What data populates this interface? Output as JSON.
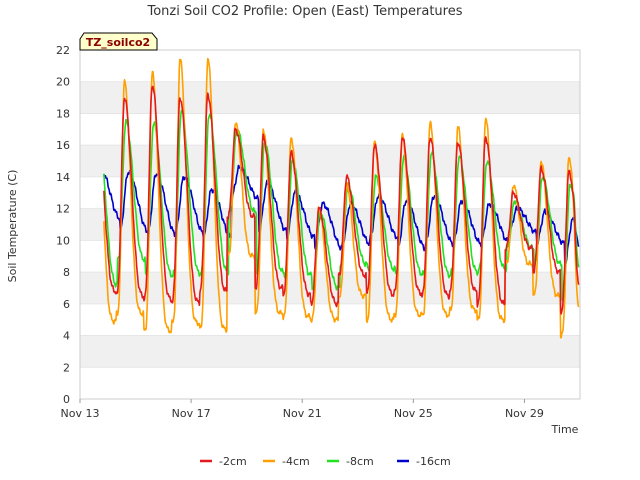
{
  "chart_data": {
    "type": "line",
    "title": "Tonzi Soil CO2 Profile: Open (East) Temperatures",
    "xlabel": "Time",
    "ylabel": "Soil Temperature (C)",
    "tag": "TZ_soilco2",
    "ylim": [
      0,
      22
    ],
    "yticks": [
      0,
      2,
      4,
      6,
      8,
      10,
      12,
      14,
      16,
      18,
      20,
      22
    ],
    "xlim": [
      0,
      18
    ],
    "xticks": [
      {
        "x": 0,
        "label": "Nov 13"
      },
      {
        "x": 4,
        "label": "Nov 17"
      },
      {
        "x": 8,
        "label": "Nov 21"
      },
      {
        "x": 12,
        "label": "Nov 25"
      },
      {
        "x": 16,
        "label": "Nov 29"
      }
    ],
    "grid": "horizontal bands",
    "legend_position": "bottom",
    "days": [
      {
        "d": 0,
        "min2": 6.8,
        "max2": 18.0,
        "min4": 4.9,
        "max4": 19.2,
        "min8": 7.2,
        "max8": 17.0,
        "min16": 11.4,
        "max16": 14.5
      },
      {
        "d": 1,
        "min2": 6.5,
        "max2": 19.0,
        "min4": 5.4,
        "max4": 20.0,
        "min8": 8.8,
        "max8": 17.5,
        "min16": 10.6,
        "max16": 14.3
      },
      {
        "d": 2,
        "min2": 6.3,
        "max2": 19.8,
        "min4": 4.3,
        "max4": 20.6,
        "min8": 7.8,
        "max8": 17.4,
        "min16": 10.4,
        "max16": 14.2
      },
      {
        "d": 3,
        "min2": 6.1,
        "max2": 19.0,
        "min4": 4.8,
        "max4": 21.5,
        "min8": 7.9,
        "max8": 18.2,
        "min16": 10.5,
        "max16": 14.0
      },
      {
        "d": 4,
        "min2": 6.8,
        "max2": 19.2,
        "min4": 4.4,
        "max4": 21.5,
        "min8": 8.0,
        "max8": 18.0,
        "min16": 10.2,
        "max16": 13.2
      },
      {
        "d": 5,
        "min2": 11.5,
        "max2": 17.0,
        "min4": 9.0,
        "max4": 17.5,
        "min8": 11.8,
        "max8": 17.0,
        "min16": 12.6,
        "max16": 14.6
      },
      {
        "d": 6,
        "min2": 7.0,
        "max2": 16.5,
        "min4": 5.4,
        "max4": 17.0,
        "min8": 8.0,
        "max8": 16.2,
        "min16": 10.6,
        "max16": 13.6
      },
      {
        "d": 7,
        "min2": 6.6,
        "max2": 15.5,
        "min4": 5.2,
        "max4": 16.5,
        "min8": 7.8,
        "max8": 15.0,
        "min16": 10.2,
        "max16": 13.0
      },
      {
        "d": 8,
        "min2": 6.0,
        "max2": 12.0,
        "min4": 5.0,
        "max4": 12.0,
        "min8": 7.0,
        "max8": 11.8,
        "min16": 9.5,
        "max16": 12.3
      },
      {
        "d": 9,
        "min2": 7.8,
        "max2": 14.0,
        "min4": 6.5,
        "max4": 13.5,
        "min8": 8.5,
        "max8": 13.5,
        "min16": 9.8,
        "max16": 12.3
      },
      {
        "d": 10,
        "min2": 6.6,
        "max2": 16.0,
        "min4": 5.0,
        "max4": 16.2,
        "min8": 8.2,
        "max8": 14.0,
        "min16": 10.2,
        "max16": 12.8
      },
      {
        "d": 11,
        "min2": 6.7,
        "max2": 16.5,
        "min4": 5.3,
        "max4": 16.6,
        "min8": 7.9,
        "max8": 15.2,
        "min16": 9.5,
        "max16": 12.5
      },
      {
        "d": 12,
        "min2": 6.5,
        "max2": 16.5,
        "min4": 5.3,
        "max4": 17.4,
        "min8": 7.8,
        "max8": 15.5,
        "min16": 9.8,
        "max16": 12.8
      },
      {
        "d": 13,
        "min2": 6.8,
        "max2": 16.2,
        "min4": 5.6,
        "max4": 17.2,
        "min8": 8.0,
        "max8": 15.3,
        "min16": 9.8,
        "max16": 12.5
      },
      {
        "d": 14,
        "min2": 6.0,
        "max2": 16.5,
        "min4": 5.0,
        "max4": 17.7,
        "min8": 8.2,
        "max8": 15.0,
        "min16": 9.9,
        "max16": 12.3
      },
      {
        "d": 15,
        "min2": 9.5,
        "max2": 13.0,
        "min4": 8.5,
        "max4": 13.5,
        "min8": 9.5,
        "max8": 12.5,
        "min16": 10.5,
        "max16": 12.0
      },
      {
        "d": 16,
        "min2": 8.0,
        "max2": 14.5,
        "min4": 6.5,
        "max4": 15.0,
        "min8": 8.5,
        "max8": 14.0,
        "min16": 9.8,
        "max16": 11.8
      },
      {
        "d": 17,
        "min2": 5.5,
        "max2": 14.3,
        "min4": 4.0,
        "max4": 15.3,
        "min8": 6.3,
        "max8": 13.5,
        "min16": 8.4,
        "max16": 11.3
      }
    ],
    "end_values": {
      "-2cm": 7.2,
      "-4cm": 5.8,
      "-8cm": 8.3,
      "-16cm": 9.6
    },
    "series": [
      {
        "name": "-2cm",
        "key": "2",
        "color": "#e41a1c"
      },
      {
        "name": "-4cm",
        "key": "4",
        "color": "#ff9f00"
      },
      {
        "name": "-8cm",
        "key": "8",
        "color": "#22e022"
      },
      {
        "name": "-16cm",
        "key": "16",
        "color": "#0000cc"
      }
    ]
  }
}
